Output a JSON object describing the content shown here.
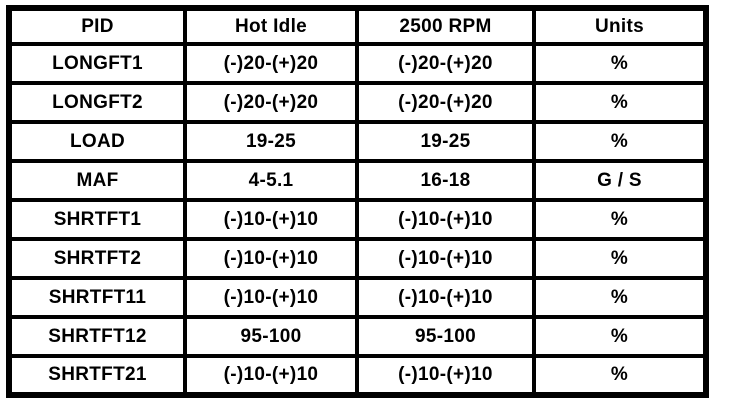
{
  "colors": {
    "ink": "#000000",
    "paper": "#ffffff"
  },
  "table": {
    "columns": [
      {
        "key": "pid",
        "label": "PID"
      },
      {
        "key": "hot_idle",
        "label": "Hot Idle"
      },
      {
        "key": "rpm_2500",
        "label": "2500 RPM"
      },
      {
        "key": "units",
        "label": "Units"
      }
    ],
    "rows": [
      {
        "pid": "LONGFT1",
        "hot_idle": "(-)20-(+)20",
        "rpm_2500": "(-)20-(+)20",
        "units": "%"
      },
      {
        "pid": "LONGFT2",
        "hot_idle": "(-)20-(+)20",
        "rpm_2500": "(-)20-(+)20",
        "units": "%"
      },
      {
        "pid": "LOAD",
        "hot_idle": "19-25",
        "rpm_2500": "19-25",
        "units": "%"
      },
      {
        "pid": "MAF",
        "hot_idle": "4-5.1",
        "rpm_2500": "16-18",
        "units": "G / S"
      },
      {
        "pid": "SHRTFT1",
        "hot_idle": "(-)10-(+)10",
        "rpm_2500": "(-)10-(+)10",
        "units": "%"
      },
      {
        "pid": "SHRTFT2",
        "hot_idle": "(-)10-(+)10",
        "rpm_2500": "(-)10-(+)10",
        "units": "%"
      },
      {
        "pid": "SHRTFT11",
        "hot_idle": "(-)10-(+)10",
        "rpm_2500": "(-)10-(+)10",
        "units": "%"
      },
      {
        "pid": "SHRTFT12",
        "hot_idle": "95-100",
        "rpm_2500": "95-100",
        "units": "%"
      },
      {
        "pid": "SHRTFT21",
        "hot_idle": "(-)10-(+)10",
        "rpm_2500": "(-)10-(+)10",
        "units": "%"
      }
    ]
  }
}
